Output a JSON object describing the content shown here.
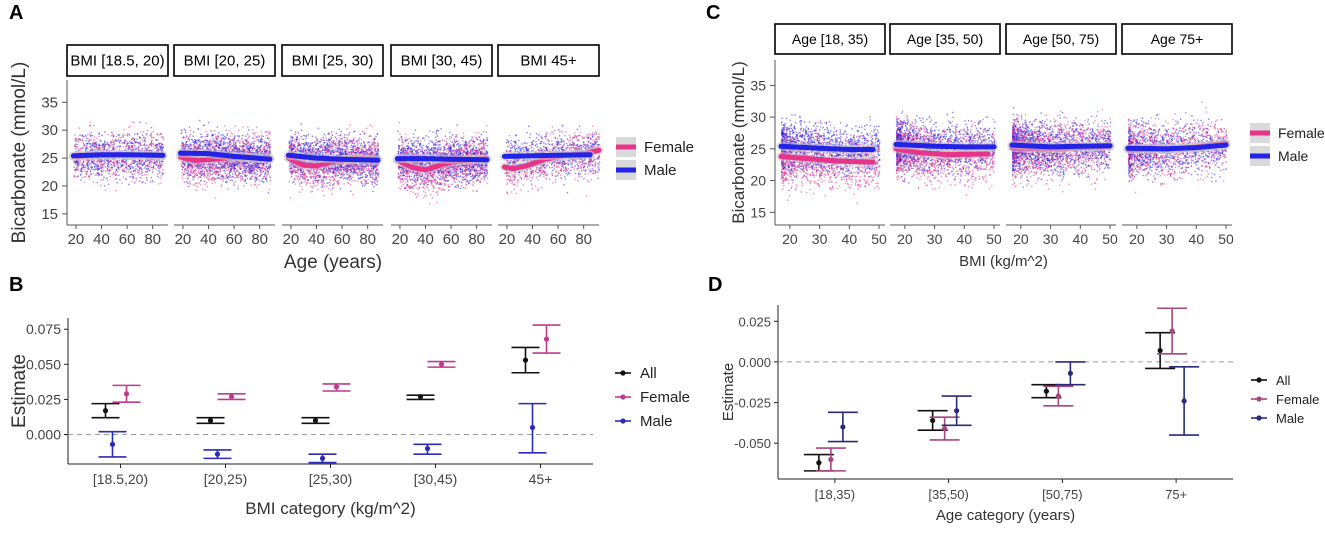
{
  "colors": {
    "female": "#e8338a",
    "male": "#2323e6",
    "all": "#111111",
    "female_est": "#c03a8e",
    "male_est": "#2b2bb8",
    "male_est_d": "#2a2a7a",
    "female_est_d": "#a8457c"
  },
  "chart_data": [
    {
      "id": "A",
      "panel_letter": "A",
      "type": "scatter",
      "facets": [
        "BMI [18.5, 20)",
        "BMI [20, 25)",
        "BMI [25, 30)",
        "BMI [30, 45)",
        "BMI 45+"
      ],
      "xlabel": "Age (years)",
      "ylabel": "Bicarbonate (mmol/L)",
      "x_ticks": [
        20,
        40,
        60,
        80
      ],
      "xlim": [
        13,
        92
      ],
      "y_ticks": [
        15,
        20,
        25,
        30,
        35
      ],
      "ylim": [
        13,
        39
      ],
      "legend": [
        "Female",
        "Male"
      ],
      "trend": [
        {
          "female": [
            [
              18,
              25.3
            ],
            [
              40,
              25.5
            ],
            [
              60,
              25.6
            ],
            [
              88,
              25.4
            ]
          ],
          "male": [
            [
              18,
              25.4
            ],
            [
              40,
              25.6
            ],
            [
              60,
              25.6
            ],
            [
              88,
              25.5
            ]
          ]
        },
        {
          "female": [
            [
              18,
              25.2
            ],
            [
              30,
              24.6
            ],
            [
              45,
              24.8
            ],
            [
              60,
              25.2
            ],
            [
              88,
              25.0
            ]
          ],
          "male": [
            [
              18,
              25.9
            ],
            [
              40,
              25.8
            ],
            [
              60,
              25.3
            ],
            [
              88,
              24.8
            ]
          ]
        },
        {
          "female": [
            [
              18,
              25.0
            ],
            [
              30,
              23.7
            ],
            [
              40,
              23.6
            ],
            [
              55,
              24.5
            ],
            [
              70,
              24.9
            ],
            [
              88,
              24.8
            ]
          ],
          "male": [
            [
              18,
              25.5
            ],
            [
              40,
              25.0
            ],
            [
              60,
              24.8
            ],
            [
              88,
              24.6
            ]
          ]
        },
        {
          "female": [
            [
              18,
              24.6
            ],
            [
              30,
              23.3
            ],
            [
              40,
              22.9
            ],
            [
              50,
              23.6
            ],
            [
              60,
              24.3
            ],
            [
              75,
              24.7
            ],
            [
              88,
              24.9
            ]
          ],
          "male": [
            [
              18,
              24.9
            ],
            [
              40,
              24.9
            ],
            [
              60,
              24.8
            ],
            [
              88,
              24.7
            ]
          ]
        },
        {
          "female": [
            [
              18,
              23.4
            ],
            [
              25,
              23.1
            ],
            [
              35,
              23.6
            ],
            [
              50,
              24.8
            ],
            [
              65,
              25.5
            ],
            [
              80,
              25.8
            ],
            [
              92,
              26.4
            ]
          ],
          "male": [
            [
              18,
              25.3
            ],
            [
              40,
              25.4
            ],
            [
              60,
              25.5
            ],
            [
              85,
              25.6
            ]
          ]
        }
      ]
    },
    {
      "id": "C",
      "panel_letter": "C",
      "type": "scatter",
      "facets": [
        "Age [18, 35)",
        "Age [35, 50)",
        "Age [50, 75)",
        "Age 75+"
      ],
      "xlabel": "BMI (kg/m^2)",
      "ylabel": "Bicarbonate (mmol/L)",
      "x_ticks": [
        20,
        30,
        40,
        50
      ],
      "xlim": [
        15,
        52
      ],
      "y_ticks": [
        15,
        20,
        25,
        30,
        35
      ],
      "ylim": [
        13,
        39
      ],
      "legend": [
        "Female",
        "Male"
      ],
      "trend": [
        {
          "female": [
            [
              17,
              23.8
            ],
            [
              25,
              23.5
            ],
            [
              35,
              23.1
            ],
            [
              48,
              22.9
            ]
          ],
          "male": [
            [
              17,
              25.4
            ],
            [
              30,
              25.1
            ],
            [
              40,
              24.9
            ],
            [
              48,
              24.9
            ]
          ]
        },
        {
          "female": [
            [
              17,
              25.0
            ],
            [
              25,
              24.4
            ],
            [
              35,
              24.1
            ],
            [
              48,
              24.2
            ]
          ],
          "male": [
            [
              17,
              25.7
            ],
            [
              30,
              25.4
            ],
            [
              40,
              25.3
            ],
            [
              50,
              25.3
            ]
          ]
        },
        {
          "female": [
            [
              17,
              25.2
            ],
            [
              30,
              25.0
            ],
            [
              40,
              25.2
            ],
            [
              50,
              25.4
            ]
          ],
          "male": [
            [
              17,
              25.6
            ],
            [
              30,
              25.3
            ],
            [
              40,
              25.4
            ],
            [
              50,
              25.5
            ]
          ]
        },
        {
          "female": [
            [
              17,
              24.9
            ],
            [
              30,
              24.9
            ],
            [
              40,
              25.3
            ],
            [
              50,
              25.9
            ]
          ],
          "male": [
            [
              17,
              25.1
            ],
            [
              30,
              25.0
            ],
            [
              40,
              25.2
            ],
            [
              50,
              25.6
            ]
          ]
        }
      ]
    },
    {
      "id": "B",
      "panel_letter": "B",
      "type": "errorbar",
      "categories": [
        "[18.5,20)",
        "[20,25)",
        "[25,30)",
        "[30,45)",
        "45+"
      ],
      "xlabel": "BMI category (kg/m^2)",
      "ylabel": "Estimate",
      "y_ticks": [
        0.0,
        0.025,
        0.05,
        0.075
      ],
      "y_tick_labels": [
        "0.000",
        "0.025",
        "0.050",
        "0.075"
      ],
      "ylim": [
        -0.021,
        0.083
      ],
      "reference_line": 0,
      "legend": [
        "All",
        "Female",
        "Male"
      ],
      "series": [
        {
          "name": "All",
          "estimates": [
            0.017,
            0.01,
            0.01,
            0.027,
            0.053
          ],
          "lower": [
            0.012,
            0.008,
            0.008,
            0.025,
            0.044
          ],
          "upper": [
            0.022,
            0.012,
            0.012,
            0.028,
            0.062
          ]
        },
        {
          "name": "Female",
          "estimates": [
            0.029,
            0.027,
            0.034,
            0.05,
            0.068
          ],
          "lower": [
            0.023,
            0.025,
            0.031,
            0.048,
            0.058
          ],
          "upper": [
            0.035,
            0.029,
            0.036,
            0.052,
            0.078
          ]
        },
        {
          "name": "Male",
          "estimates": [
            -0.007,
            -0.014,
            -0.017,
            -0.01,
            0.005
          ],
          "lower": [
            -0.016,
            -0.017,
            -0.02,
            -0.014,
            -0.013
          ],
          "upper": [
            0.002,
            -0.011,
            -0.014,
            -0.007,
            0.022
          ]
        }
      ]
    },
    {
      "id": "D",
      "panel_letter": "D",
      "type": "errorbar",
      "categories": [
        "[18,35)",
        "[35,50)",
        "[50,75)",
        "75+"
      ],
      "xlabel": "Age category (years)",
      "ylabel": "Estimate",
      "y_ticks": [
        -0.05,
        -0.025,
        0.0,
        0.025
      ],
      "y_tick_labels": [
        "-0.050",
        "-0.025",
        "0.000",
        "0.025"
      ],
      "ylim": [
        -0.072,
        0.035
      ],
      "reference_line": 0,
      "legend": [
        "All",
        "Female",
        "Male"
      ],
      "series": [
        {
          "name": "All",
          "estimates": [
            -0.062,
            -0.036,
            -0.018,
            0.007
          ],
          "lower": [
            -0.067,
            -0.042,
            -0.022,
            -0.004
          ],
          "upper": [
            -0.057,
            -0.03,
            -0.014,
            0.018
          ]
        },
        {
          "name": "Female",
          "estimates": [
            -0.06,
            -0.041,
            -0.021,
            0.019
          ],
          "lower": [
            -0.067,
            -0.048,
            -0.027,
            0.005
          ],
          "upper": [
            -0.053,
            -0.034,
            -0.015,
            0.033
          ]
        },
        {
          "name": "Male",
          "estimates": [
            -0.04,
            -0.03,
            -0.007,
            -0.024
          ],
          "lower": [
            -0.049,
            -0.039,
            -0.014,
            -0.045
          ],
          "upper": [
            -0.031,
            -0.021,
            0.0,
            -0.003
          ]
        }
      ]
    }
  ]
}
